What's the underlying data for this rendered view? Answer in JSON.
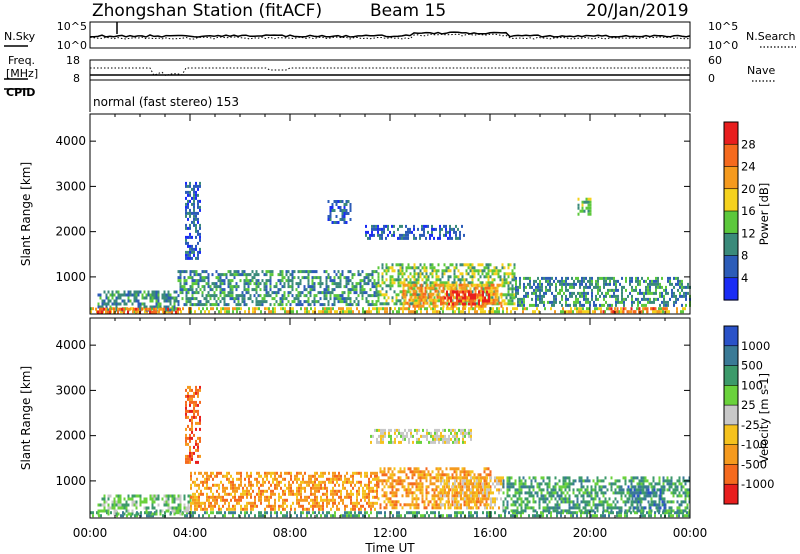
{
  "header": {
    "station": "Zhongshan Station (fitACF)",
    "beam": "Beam 15",
    "date": "20/Jan/2019"
  },
  "noise_panel": {
    "left_label": "N.Sky",
    "left_ticks": [
      "10^5",
      "10^0"
    ],
    "right_label": "N.Search",
    "right_ticks": [
      "10^5",
      "10^0"
    ]
  },
  "freq_panel": {
    "label_line1": "Freq.",
    "label_line2": "[MHz]",
    "left_ticks": [
      "18",
      "8"
    ],
    "right_label": "Nave",
    "right_ticks": [
      "60",
      "0"
    ]
  },
  "cpid_panel": {
    "label": "CPID",
    "text": "normal (fast stereo) 153"
  },
  "x_axis": {
    "label": "Time UT",
    "ticks": [
      "00:00",
      "04:00",
      "08:00",
      "12:00",
      "16:00",
      "20:00",
      "00:00"
    ]
  },
  "chart_data": [
    {
      "type": "heatmap",
      "panel": "power",
      "x": [
        "00:00",
        "04:00",
        "08:00",
        "12:00",
        "16:00",
        "20:00",
        "00:00"
      ],
      "xlim_hours": [
        0,
        24
      ],
      "ylabel": "Slant Range [km]",
      "yticks": [
        1000,
        2000,
        3000,
        4000
      ],
      "ylim": [
        180,
        4600
      ],
      "colorbar": {
        "label": "Power [dB]",
        "ticks": [
          "4",
          "8",
          "12",
          "16",
          "20",
          "24",
          "28"
        ],
        "colors": [
          "#1a2cf5",
          "#2c5cb8",
          "#3a8a7a",
          "#5cc83c",
          "#f5d21e",
          "#f59a1e",
          "#f56a1e",
          "#e81e1e"
        ]
      },
      "regions": [
        {
          "t0": 0.0,
          "t1": 24.0,
          "r0": 200,
          "r1": 330,
          "v": 4
        },
        {
          "t0": 0.3,
          "t1": 3.5,
          "r0": 250,
          "r1": 700,
          "v": 2
        },
        {
          "t0": 3.5,
          "t1": 11.5,
          "r0": 380,
          "r1": 1150,
          "v": 2
        },
        {
          "t0": 11.5,
          "t1": 17.0,
          "r0": 400,
          "r1": 1300,
          "v": 3
        },
        {
          "t0": 17.0,
          "t1": 24.0,
          "r0": 350,
          "r1": 1000,
          "v": 2
        },
        {
          "t0": 12.5,
          "t1": 16.5,
          "r0": 380,
          "r1": 850,
          "v": 5
        },
        {
          "t0": 14.0,
          "t1": 16.0,
          "r0": 420,
          "r1": 700,
          "v": 7
        },
        {
          "t0": 0.2,
          "t1": 3.6,
          "r0": 230,
          "r1": 320,
          "v": 6
        },
        {
          "t0": 20.5,
          "t1": 23.0,
          "r0": 230,
          "r1": 330,
          "v": 6
        },
        {
          "t0": 9.5,
          "t1": 10.4,
          "r0": 2200,
          "r1": 2700,
          "v": 1
        },
        {
          "t0": 11.0,
          "t1": 15.0,
          "r0": 1850,
          "r1": 2150,
          "v": 1
        },
        {
          "t0": 3.8,
          "t1": 4.4,
          "r0": 1400,
          "r1": 3100,
          "v": 1
        },
        {
          "t0": 19.5,
          "t1": 20.0,
          "r0": 2400,
          "r1": 2750,
          "v": 3
        }
      ]
    },
    {
      "type": "heatmap",
      "panel": "velocity",
      "x": [
        "00:00",
        "04:00",
        "08:00",
        "12:00",
        "16:00",
        "20:00",
        "00:00"
      ],
      "xlim_hours": [
        0,
        24
      ],
      "ylabel": "Slant Range [km]",
      "yticks": [
        1000,
        2000,
        3000,
        4000
      ],
      "ylim": [
        180,
        4600
      ],
      "colorbar": {
        "label": "Velocity [m s-1]",
        "ticks": [
          "1000",
          "500",
          "100",
          "25",
          "-25",
          "-100",
          "-500",
          "-1000"
        ],
        "colors": [
          "#2a52c8",
          "#3a7a96",
          "#3c9a6a",
          "#6ad23c",
          "#c8c8c8",
          "#f5c21e",
          "#f59a1e",
          "#f56a1e",
          "#e81e1e"
        ]
      },
      "regions": [
        {
          "t0": 0.0,
          "t1": 24.0,
          "r0": 200,
          "r1": 330,
          "v": 2
        },
        {
          "t0": 0.3,
          "t1": 4.0,
          "r0": 250,
          "r1": 700,
          "v": 3
        },
        {
          "t0": 4.0,
          "t1": 11.5,
          "r0": 380,
          "r1": 1200,
          "v": 6
        },
        {
          "t0": 11.5,
          "t1": 16.0,
          "r0": 400,
          "r1": 1300,
          "v": 6
        },
        {
          "t0": 14.0,
          "t1": 16.5,
          "r0": 400,
          "r1": 1100,
          "v": 5
        },
        {
          "t0": 16.5,
          "t1": 24.0,
          "r0": 350,
          "r1": 1100,
          "v": 2
        },
        {
          "t0": 11.2,
          "t1": 15.2,
          "r0": 1850,
          "r1": 2150,
          "v": 4
        },
        {
          "t0": 3.8,
          "t1": 4.4,
          "r0": 1400,
          "r1": 3100,
          "v": 7
        },
        {
          "t0": 21.5,
          "t1": 23.0,
          "r0": 400,
          "r1": 900,
          "v": 1
        }
      ]
    }
  ]
}
